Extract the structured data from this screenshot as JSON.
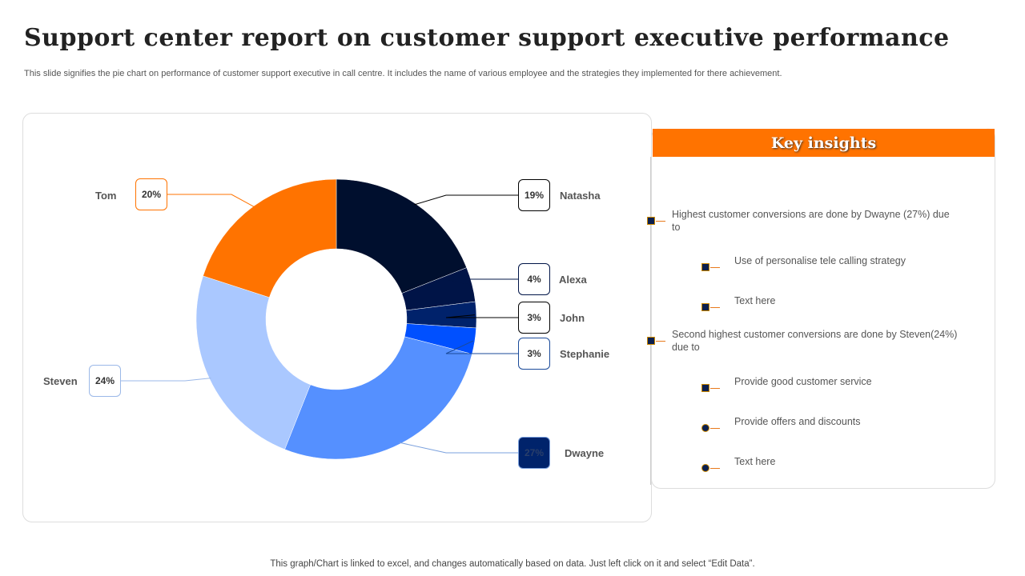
{
  "title": "Support center report on customer support executive performance",
  "subtitle": "This slide signifies the pie chart on performance of customer support executive in call centre. It includes the name of various employee and the strategies they implemented for there achievement.",
  "chart_data": {
    "type": "pie",
    "style": "donut",
    "categories": [
      "Natasha",
      "Alexa",
      "John",
      "Stephanie",
      "Dwayne",
      "Steven",
      "Tom"
    ],
    "values": [
      19,
      4,
      3,
      3,
      27,
      24,
      20
    ],
    "labels": [
      "19%",
      "4%",
      "3%",
      "3%",
      "27%",
      "24%",
      "20%"
    ],
    "colors": [
      "#000f2e",
      "#001447",
      "#00226b",
      "#0050ff",
      "#5590ff",
      "#aac8ff",
      "#ff7300"
    ]
  },
  "insights": {
    "title": "Key insights",
    "items": [
      {
        "text": "Highest customer conversions are done by Dwayne (27%) due to",
        "level": 1,
        "marker": "square"
      },
      {
        "text": "Use of personalise tele calling strategy",
        "level": 2,
        "marker": "square"
      },
      {
        "text": "Text here",
        "level": 2,
        "marker": "square"
      },
      {
        "text": "Second highest customer conversions are done by Steven(24%) due to",
        "level": 1,
        "marker": "square"
      },
      {
        "text": "Provide good customer service",
        "level": 2,
        "marker": "square"
      },
      {
        "text": "Provide offers and discounts",
        "level": 2,
        "marker": "circle"
      },
      {
        "text": "Text here",
        "level": 2,
        "marker": "circle"
      }
    ]
  },
  "footer": "This graph/Chart is linked to excel, and changes automatically based on data. Just left click on it and select “Edit Data”."
}
